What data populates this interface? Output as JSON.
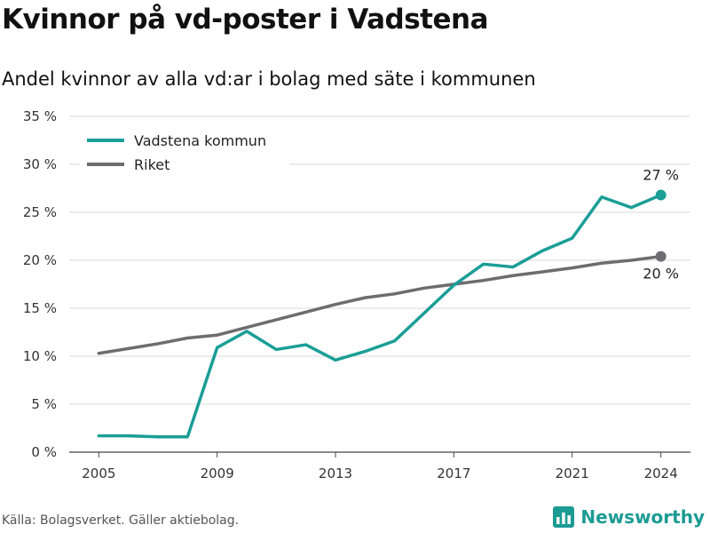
{
  "header": {
    "title": "Kvinnor på vd-poster i Vadstena",
    "subtitle": "Andel kvinnor av alla vd:ar i bolag med säte i kommunen"
  },
  "footer": {
    "source": "Källa: Bolagsverket. Gäller aktiebolag.",
    "brand": "Newsworthy",
    "brand_icon": "bar-chart-icon"
  },
  "colors": {
    "vadstena": "#1a9e96",
    "riket": "#6d6c70",
    "grid": "#d9d9d9",
    "brand": "#1b9b93"
  },
  "chart_data": {
    "type": "line",
    "title": "Kvinnor på vd-poster i Vadstena",
    "subtitle": "Andel kvinnor av alla vd:ar i bolag med säte i kommunen",
    "xlabel": "",
    "ylabel": "",
    "x": [
      2005,
      2006,
      2007,
      2008,
      2009,
      2010,
      2011,
      2012,
      2013,
      2014,
      2015,
      2016,
      2017,
      2018,
      2019,
      2020,
      2021,
      2022,
      2023,
      2024
    ],
    "x_ticks": [
      2005,
      2009,
      2013,
      2017,
      2021,
      2024
    ],
    "ylim": [
      0,
      35
    ],
    "y_ticks": [
      0,
      5,
      10,
      15,
      20,
      25,
      30,
      35
    ],
    "y_tick_labels": [
      "0 %",
      "5 %",
      "10 %",
      "15 %",
      "20 %",
      "25 %",
      "30 %",
      "35 %"
    ],
    "grid": true,
    "legend_position": "top-left",
    "series": [
      {
        "name": "Vadstena kommun",
        "values": [
          1.7,
          1.7,
          1.6,
          1.6,
          10.9,
          12.6,
          10.7,
          11.2,
          9.6,
          10.5,
          11.6,
          14.5,
          17.4,
          19.6,
          19.3,
          21.0,
          22.3,
          26.6,
          25.5,
          26.8
        ],
        "end_label": "27 %"
      },
      {
        "name": "Riket",
        "values": [
          10.3,
          10.8,
          11.3,
          11.9,
          12.2,
          13.0,
          13.8,
          14.6,
          15.4,
          16.1,
          16.5,
          17.1,
          17.5,
          17.9,
          18.4,
          18.8,
          19.2,
          19.7,
          20.0,
          20.4
        ],
        "end_label": "20 %"
      }
    ]
  }
}
